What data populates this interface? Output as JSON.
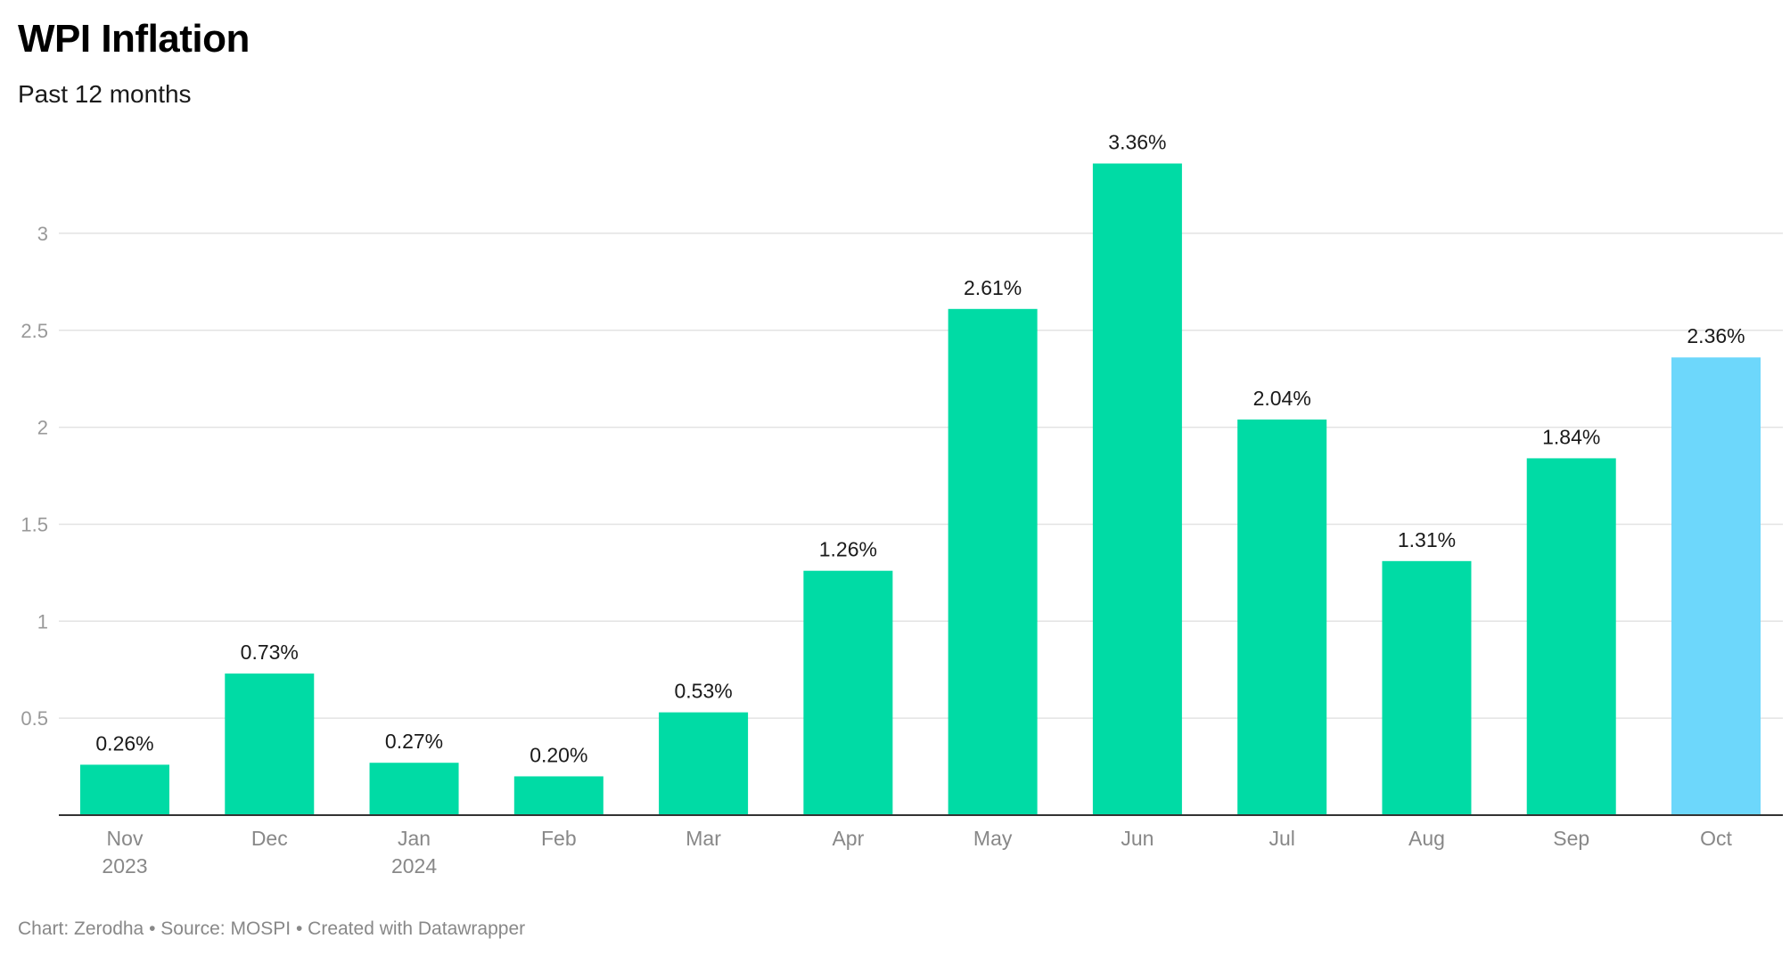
{
  "chart_data": {
    "type": "bar",
    "title": "WPI Inflation",
    "subtitle": "Past 12 months",
    "categories": [
      "Nov",
      "Dec",
      "Jan",
      "Feb",
      "Mar",
      "Apr",
      "May",
      "Jun",
      "Jul",
      "Aug",
      "Sep",
      "Oct"
    ],
    "category_years": [
      "2023",
      "",
      "2024",
      "",
      "",
      "",
      "",
      "",
      "",
      "",
      "",
      ""
    ],
    "values": [
      0.26,
      0.73,
      0.27,
      0.2,
      0.53,
      1.26,
      2.61,
      3.36,
      2.04,
      1.31,
      1.84,
      2.36
    ],
    "data_labels": [
      "0.26%",
      "0.73%",
      "0.27%",
      "0.20%",
      "0.53%",
      "1.26%",
      "2.61%",
      "3.36%",
      "2.04%",
      "1.31%",
      "1.84%",
      "2.36%"
    ],
    "y_ticks": [
      0.5,
      1,
      1.5,
      2,
      2.5,
      3
    ],
    "ylim": [
      0,
      3.36
    ],
    "grid": true,
    "legend": "none",
    "colors": {
      "default_bar": "#00dba5",
      "highlight_bar": "#6dd7fb",
      "gridline": "#e3e3e3",
      "axis": "#333333"
    },
    "highlight_index": 11
  },
  "footer": "Chart: Zerodha • Source: MOSPI • Created with Datawrapper"
}
